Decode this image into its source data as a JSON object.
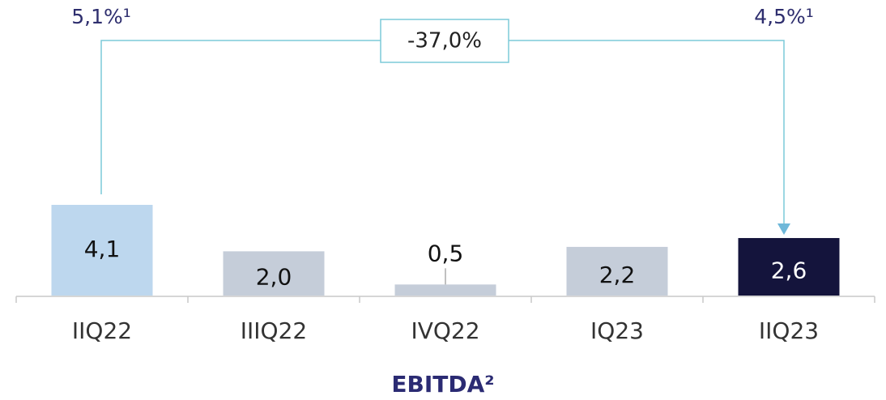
{
  "chart_data": {
    "type": "bar",
    "title": "EBITDA²",
    "categories": [
      "IIQ22",
      "IIIQ22",
      "IVQ22",
      "IQ23",
      "IIQ23"
    ],
    "values": [
      4.1,
      2.0,
      0.5,
      2.2,
      2.6
    ],
    "value_labels": [
      "4,1",
      "2,0",
      "0,5",
      "2,2",
      "2,6"
    ],
    "colors": [
      "#bdd7ee",
      "#c5cdd9",
      "#c5cdd9",
      "#c5cdd9",
      "#14143c"
    ],
    "annotations": [
      "5,1%¹",
      "4,5%¹",
      "-37,0%"
    ]
  }
}
